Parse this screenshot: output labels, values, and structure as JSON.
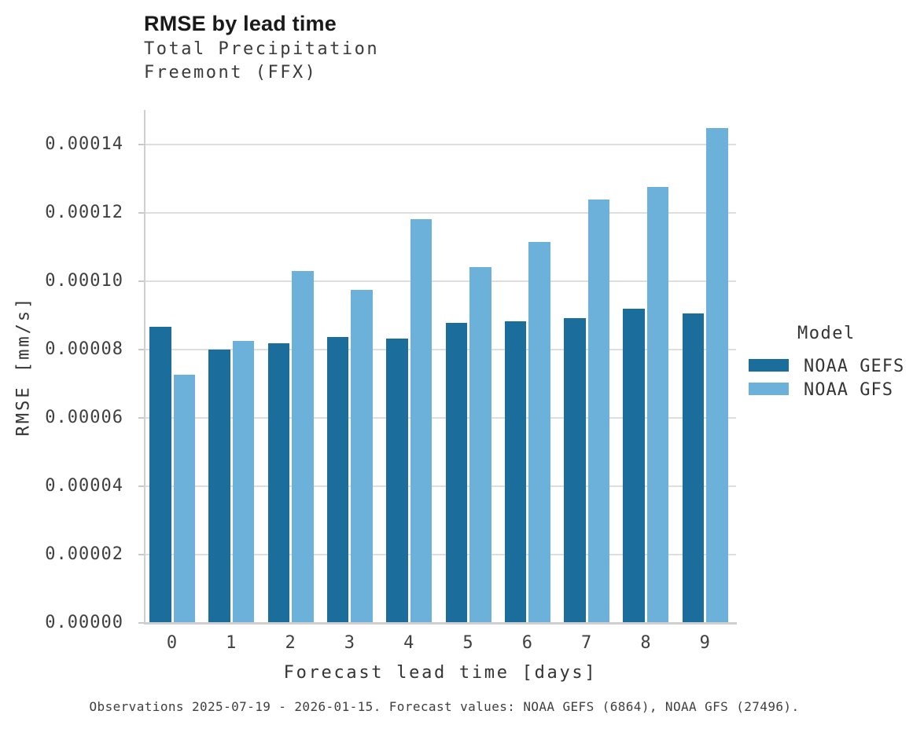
{
  "caption": "Observations 2025-07-19 - 2026-01-15. Forecast values: NOAA GEFS (6864), NOAA GFS (27496).",
  "legend": {
    "title": "Model",
    "entries": [
      {
        "label": "NOAA GEFS",
        "color": "#1b6e9c"
      },
      {
        "label": "NOAA GFS",
        "color": "#6bb1d9"
      }
    ]
  },
  "colors": {
    "gefs_bar": "#1b6e9c",
    "gfs_bar": "#6bb1d9",
    "gridline": "#dedede",
    "axis_line": "#cfcfcf",
    "text": "#343434"
  },
  "chart_data": {
    "type": "bar",
    "title": "RMSE by lead time",
    "subtitle": [
      "Total Precipitation",
      "Freemont (FFX)"
    ],
    "xlabel": "Forecast lead time [days]",
    "ylabel": "RMSE [mm/s]",
    "categories": [
      "0",
      "1",
      "2",
      "3",
      "4",
      "5",
      "6",
      "7",
      "8",
      "9"
    ],
    "series": [
      {
        "name": "NOAA GEFS",
        "color": "#1b6e9c",
        "values": [
          8.67e-05,
          8e-05,
          8.18e-05,
          8.36e-05,
          8.32e-05,
          8.78e-05,
          8.81e-05,
          8.91e-05,
          9.18e-05,
          9.04e-05
        ]
      },
      {
        "name": "NOAA GFS",
        "color": "#6bb1d9",
        "values": [
          7.26e-05,
          8.25e-05,
          0.0001029,
          9.75e-05,
          0.0001181,
          0.000104,
          0.0001113,
          0.0001237,
          0.0001276,
          0.0001448
        ]
      }
    ],
    "ylim": [
      0,
      0.00015
    ],
    "yticks": [
      0.0,
      2e-05,
      4e-05,
      6e-05,
      8e-05,
      0.0001,
      0.00012,
      0.00014
    ],
    "ytick_decimals": 5,
    "grid": "horizontal",
    "legend_title": "Model",
    "legend_position": "right"
  }
}
